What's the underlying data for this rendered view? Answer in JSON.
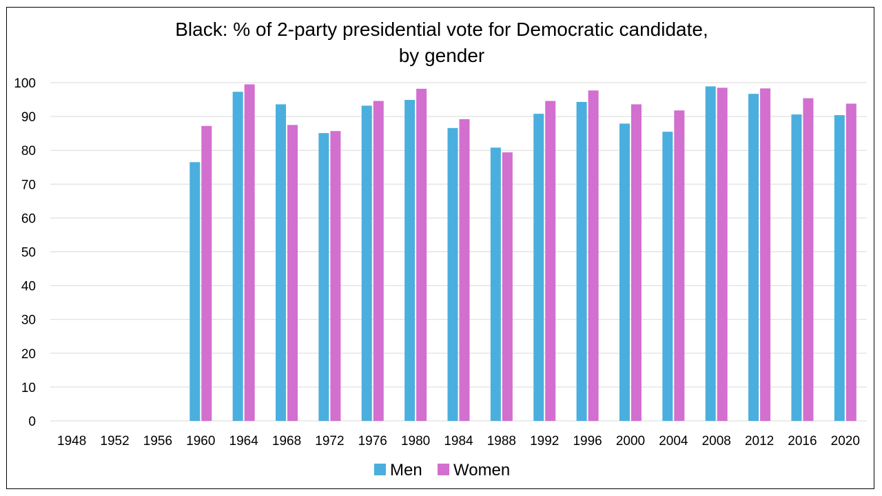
{
  "chart_data": {
    "type": "bar",
    "title": [
      "Black: % of 2-party presidential vote for Democratic candidate,",
      "by gender"
    ],
    "xlabel": "",
    "ylabel": "",
    "ylim": [
      0,
      100
    ],
    "yticks": [
      0,
      10,
      20,
      30,
      40,
      50,
      60,
      70,
      80,
      90,
      100
    ],
    "grid": true,
    "legend_position": "bottom",
    "categories": [
      "1948",
      "1952",
      "1956",
      "1960",
      "1964",
      "1968",
      "1972",
      "1976",
      "1980",
      "1984",
      "1988",
      "1992",
      "1996",
      "2000",
      "2004",
      "2008",
      "2012",
      "2016",
      "2020"
    ],
    "series": [
      {
        "name": "Men",
        "color": "#4aafde",
        "values": [
          null,
          null,
          null,
          76.5,
          97.3,
          93.6,
          85.1,
          93.2,
          94.9,
          86.6,
          80.8,
          90.8,
          94.3,
          87.9,
          85.5,
          98.9,
          96.7,
          90.6,
          90.4
        ]
      },
      {
        "name": "Women",
        "color": "#d26fcf",
        "values": [
          null,
          null,
          null,
          87.2,
          99.5,
          87.5,
          85.7,
          94.6,
          98.2,
          89.2,
          79.4,
          94.6,
          97.7,
          93.6,
          91.8,
          98.5,
          98.3,
          95.4,
          93.8
        ]
      }
    ]
  }
}
